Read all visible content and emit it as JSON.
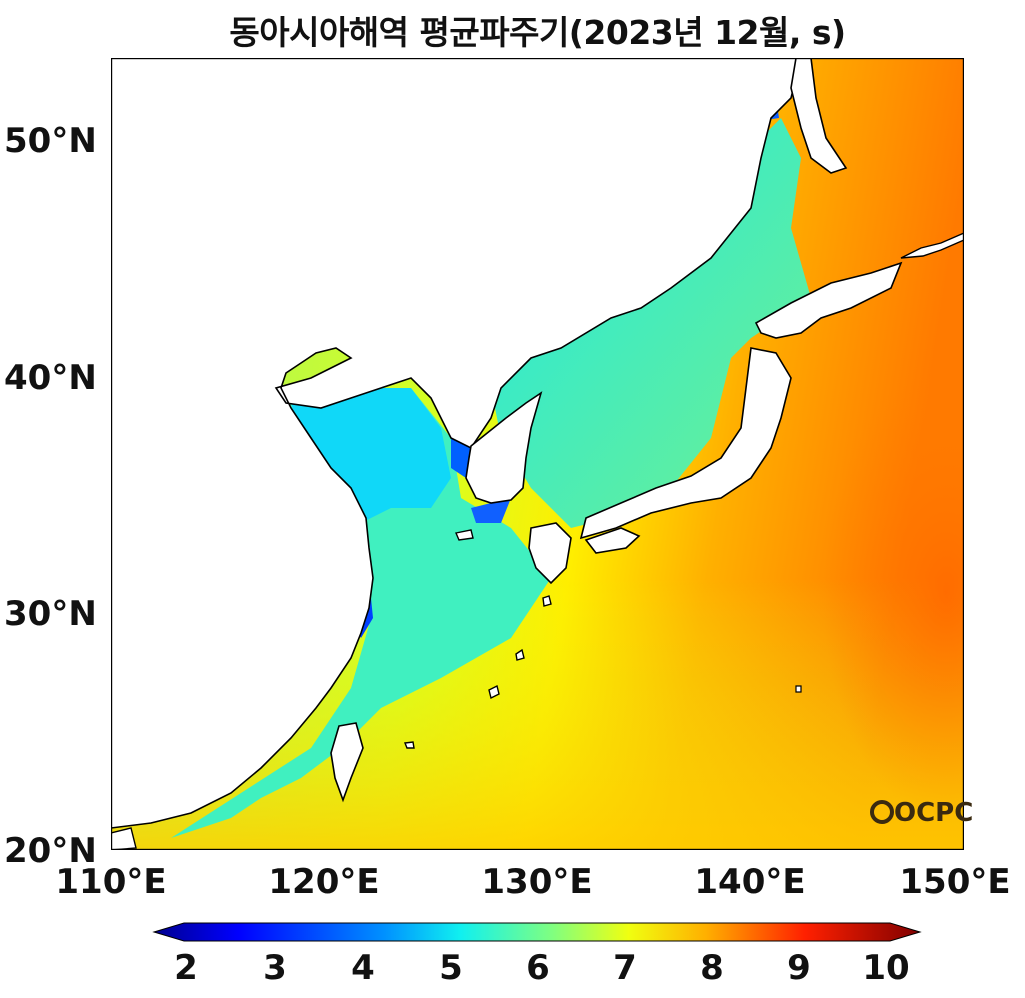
{
  "title": "동아시아해역 평균파주기(2023년 12월, s)",
  "logo": "OCPC",
  "map": {
    "lon_range": [
      110,
      150
    ],
    "lat_range": [
      20,
      53.5
    ],
    "x_ticks": [
      "110°E",
      "120°E",
      "130°E",
      "140°E",
      "150°E"
    ],
    "y_ticks": [
      "50°N",
      "40°N",
      "30°N",
      "20°N"
    ],
    "variable": "mean wave period",
    "unit": "s"
  },
  "colorbar": {
    "min": 2,
    "max": 10,
    "extend": "both",
    "ticks": [
      "2",
      "3",
      "4",
      "5",
      "6",
      "7",
      "8",
      "9",
      "10"
    ],
    "colors": [
      "#00008f",
      "#0000ff",
      "#0080ff",
      "#00ffff",
      "#80ff80",
      "#ffff00",
      "#ff8000",
      "#ff0000",
      "#800000"
    ]
  }
}
